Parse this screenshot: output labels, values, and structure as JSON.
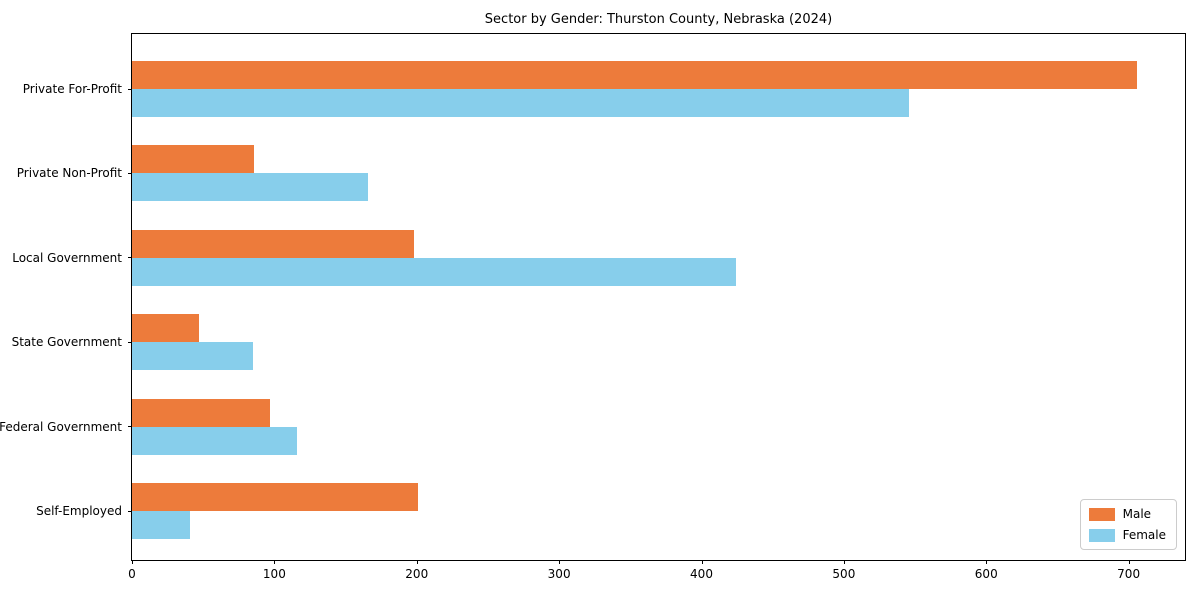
{
  "chart_data": {
    "type": "bar",
    "orientation": "horizontal",
    "title": "Sector by Gender: Thurston County, Nebraska (2024)",
    "categories": [
      "Private For-Profit",
      "Private Non-Profit",
      "Local Government",
      "State Government",
      "Federal Government",
      "Self-Employed"
    ],
    "series": [
      {
        "name": "Male",
        "color": "#ed7b3b",
        "values": [
          706,
          86,
          198,
          47,
          97,
          201
        ]
      },
      {
        "name": "Female",
        "color": "#87ceeb",
        "values": [
          546,
          166,
          424,
          85,
          116,
          41
        ]
      }
    ],
    "xlabel": "",
    "ylabel": "",
    "xlim": [
      0,
      741
    ],
    "xticks": [
      0,
      100,
      200,
      300,
      400,
      500,
      600,
      700
    ],
    "grid": false,
    "legend_position": "lower right"
  }
}
